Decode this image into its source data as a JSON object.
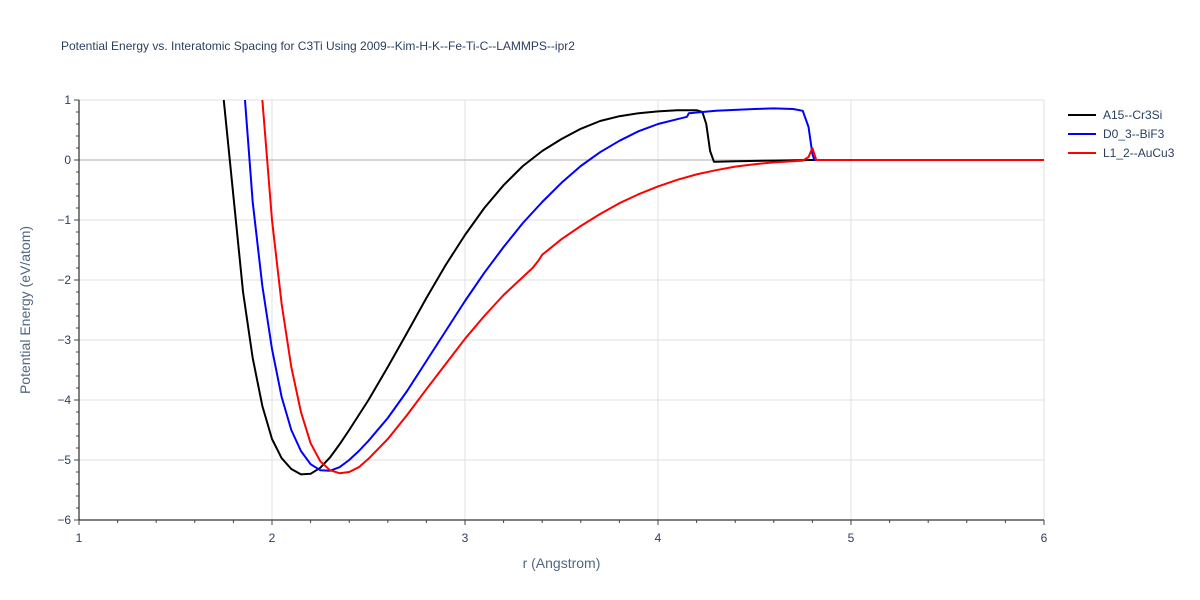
{
  "chart_data": {
    "type": "line",
    "title": "Potential Energy vs. Interatomic Spacing for C3Ti Using 2009--Kim-H-K--Fe-Ti-C--LAMMPS--ipr2",
    "xlabel": "r (Angstrom)",
    "ylabel": "Potential Energy (eV/atom)",
    "xlim": [
      1,
      6
    ],
    "ylim": [
      -6,
      1
    ],
    "xticks": [
      1,
      2,
      3,
      4,
      5,
      6
    ],
    "yticks": [
      -6,
      -5,
      -4,
      -3,
      -2,
      -1,
      0,
      1
    ],
    "xtick_labels": [
      "1",
      "2",
      "3",
      "4",
      "5",
      "6"
    ],
    "ytick_labels": [
      "−6",
      "−5",
      "−4",
      "−3",
      "−2",
      "−1",
      "0",
      "1"
    ],
    "grid": true,
    "legend_position": "top-right",
    "series": [
      {
        "name": "A15--Cr3Si",
        "color": "#000000",
        "x": [
          1.75,
          1.8,
          1.85,
          1.9,
          1.95,
          2.0,
          2.05,
          2.1,
          2.15,
          2.2,
          2.25,
          2.3,
          2.35,
          2.4,
          2.5,
          2.6,
          2.7,
          2.8,
          2.9,
          3.0,
          3.1,
          3.2,
          3.3,
          3.4,
          3.5,
          3.6,
          3.7,
          3.8,
          3.9,
          4.0,
          4.1,
          4.2,
          4.23,
          4.25,
          4.27,
          4.29,
          4.3,
          4.4,
          4.6,
          4.8,
          5.0,
          5.5,
          6.0
        ],
        "y": [
          1.0,
          -0.6,
          -2.2,
          -3.3,
          -4.1,
          -4.65,
          -4.97,
          -5.15,
          -5.24,
          -5.23,
          -5.13,
          -4.96,
          -4.74,
          -4.5,
          -4.0,
          -3.45,
          -2.88,
          -2.3,
          -1.75,
          -1.25,
          -0.8,
          -0.42,
          -0.1,
          0.15,
          0.35,
          0.52,
          0.65,
          0.73,
          0.78,
          0.81,
          0.83,
          0.83,
          0.8,
          0.6,
          0.15,
          -0.03,
          -0.03,
          -0.02,
          -0.01,
          0.0,
          0.0,
          0.0,
          0.0
        ]
      },
      {
        "name": "D0_3--BiF3",
        "color": "#0000ff",
        "x": [
          1.86,
          1.9,
          1.95,
          2.0,
          2.05,
          2.1,
          2.15,
          2.2,
          2.25,
          2.3,
          2.35,
          2.4,
          2.45,
          2.5,
          2.6,
          2.7,
          2.8,
          2.9,
          3.0,
          3.1,
          3.2,
          3.3,
          3.4,
          3.5,
          3.6,
          3.7,
          3.8,
          3.9,
          4.0,
          4.1,
          4.15,
          4.16,
          4.3,
          4.5,
          4.6,
          4.7,
          4.75,
          4.78,
          4.8,
          4.81,
          5.0,
          5.5,
          6.0
        ],
        "y": [
          1.0,
          -0.7,
          -2.1,
          -3.15,
          -3.95,
          -4.5,
          -4.85,
          -5.07,
          -5.17,
          -5.18,
          -5.12,
          -5.0,
          -4.85,
          -4.68,
          -4.3,
          -3.85,
          -3.35,
          -2.85,
          -2.35,
          -1.88,
          -1.45,
          -1.05,
          -0.7,
          -0.38,
          -0.1,
          0.13,
          0.32,
          0.48,
          0.6,
          0.68,
          0.72,
          0.78,
          0.82,
          0.85,
          0.86,
          0.85,
          0.82,
          0.55,
          0.1,
          0.0,
          0.0,
          0.0,
          0.0
        ],
        "_note": ""
      },
      {
        "name": "L1_2--AuCu3",
        "color": "#ff0000",
        "x": [
          1.95,
          2.0,
          2.05,
          2.1,
          2.15,
          2.2,
          2.25,
          2.3,
          2.35,
          2.4,
          2.45,
          2.5,
          2.6,
          2.7,
          2.8,
          2.9,
          3.0,
          3.1,
          3.2,
          3.3,
          3.35,
          3.38,
          3.4,
          3.5,
          3.6,
          3.7,
          3.8,
          3.9,
          4.0,
          4.1,
          4.2,
          4.3,
          4.4,
          4.5,
          4.6,
          4.7,
          4.75,
          4.78,
          4.8,
          4.82,
          5.0,
          5.5,
          6.0
        ],
        "y": [
          1.0,
          -1.0,
          -2.4,
          -3.45,
          -4.2,
          -4.72,
          -5.02,
          -5.17,
          -5.22,
          -5.2,
          -5.12,
          -4.98,
          -4.65,
          -4.25,
          -3.82,
          -3.4,
          -2.98,
          -2.6,
          -2.25,
          -1.95,
          -1.8,
          -1.68,
          -1.58,
          -1.32,
          -1.1,
          -0.9,
          -0.72,
          -0.57,
          -0.44,
          -0.33,
          -0.24,
          -0.17,
          -0.11,
          -0.07,
          -0.04,
          -0.02,
          -0.01,
          0.05,
          0.2,
          0.0,
          0.0,
          0.0,
          0.0
        ]
      }
    ]
  }
}
